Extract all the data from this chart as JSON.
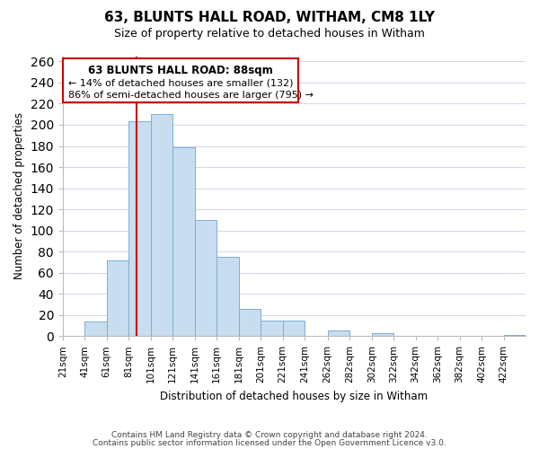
{
  "title": "63, BLUNTS HALL ROAD, WITHAM, CM8 1LY",
  "subtitle": "Size of property relative to detached houses in Witham",
  "xlabel": "Distribution of detached houses by size in Witham",
  "ylabel": "Number of detached properties",
  "bar_color": "#c8ddf0",
  "bar_edge_color": "#7bafd4",
  "marker_line_color": "#cc0000",
  "marker_value": 88,
  "categories": [
    "21sqm",
    "41sqm",
    "61sqm",
    "81sqm",
    "101sqm",
    "121sqm",
    "141sqm",
    "161sqm",
    "181sqm",
    "201sqm",
    "221sqm",
    "241sqm",
    "262sqm",
    "282sqm",
    "302sqm",
    "322sqm",
    "342sqm",
    "362sqm",
    "382sqm",
    "402sqm",
    "422sqm"
  ],
  "bin_edges": [
    21,
    41,
    61,
    81,
    101,
    121,
    141,
    161,
    181,
    201,
    221,
    241,
    262,
    282,
    302,
    322,
    342,
    362,
    382,
    402,
    422,
    442
  ],
  "values": [
    0,
    14,
    72,
    203,
    210,
    179,
    110,
    75,
    26,
    15,
    15,
    0,
    5,
    0,
    3,
    0,
    0,
    0,
    0,
    0,
    1
  ],
  "ylim": [
    0,
    265
  ],
  "yticks": [
    0,
    20,
    40,
    60,
    80,
    100,
    120,
    140,
    160,
    180,
    200,
    220,
    240,
    260
  ],
  "annotation_title": "63 BLUNTS HALL ROAD: 88sqm",
  "annotation_line1": "← 14% of detached houses are smaller (132)",
  "annotation_line2": "86% of semi-detached houses are larger (795) →",
  "annotation_box_color": "#ffffff",
  "annotation_box_edge": "#cc0000",
  "footer_line1": "Contains HM Land Registry data © Crown copyright and database right 2024.",
  "footer_line2": "Contains public sector information licensed under the Open Government Licence v3.0.",
  "background_color": "#ffffff",
  "grid_color": "#d0d8e8"
}
